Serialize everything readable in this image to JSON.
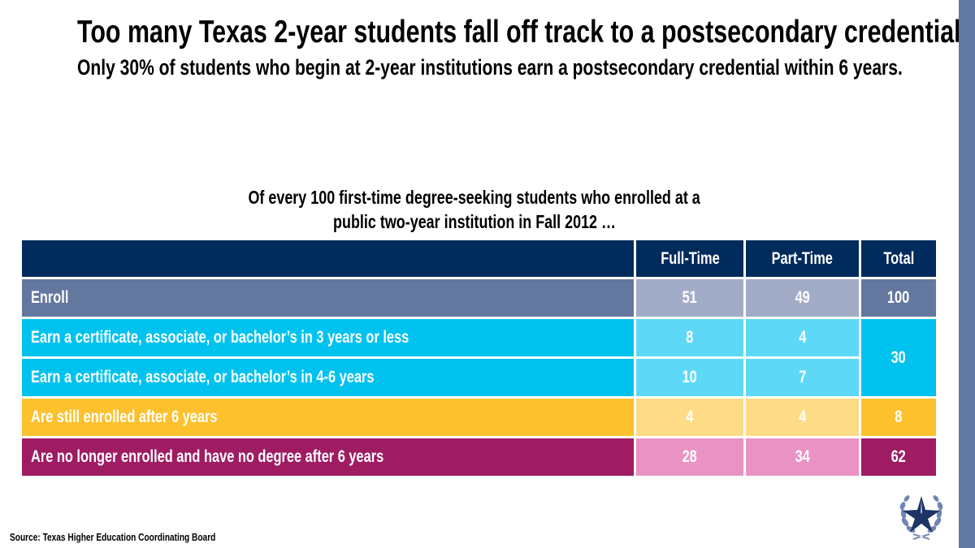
{
  "title": "Too many Texas 2-year students fall off track to a postsecondary credential.",
  "subtitle": "Only 30% of students who begin at 2-year institutions earn a postsecondary credential within 6 years.",
  "caption_line1": "Of every 100 first-time degree-seeking students who enrolled at a",
  "caption_line2": "public two-year institution in Fall 2012 …",
  "table": {
    "headers": [
      "",
      "Full-Time",
      "Part-Time",
      "Total"
    ],
    "rows": [
      {
        "label": "Enroll",
        "full_time": "51",
        "part_time": "49",
        "total": "100"
      },
      {
        "label": "Earn a certificate, associate, or bachelor’s in 3 years or less",
        "full_time": "8",
        "part_time": "4",
        "total": "30"
      },
      {
        "label": "Earn a certificate, associate, or bachelor’s in 4-6 years",
        "full_time": "10",
        "part_time": "7"
      },
      {
        "label": "Are still enrolled after 6 years",
        "full_time": "4",
        "part_time": "4",
        "total": "8"
      },
      {
        "label": "Are no longer enrolled and have no degree after 6 years",
        "full_time": "28",
        "part_time": "34",
        "total": "62"
      }
    ]
  },
  "colors": {
    "header": "#002b5c",
    "enroll": "#64779f",
    "earn": "#00c2ef",
    "still": "#fdc12e",
    "no_longer": "#9f1c63"
  },
  "source": "Source: Texas Higher Education Coordinating Board",
  "logo_icon": "star-laurel-icon"
}
